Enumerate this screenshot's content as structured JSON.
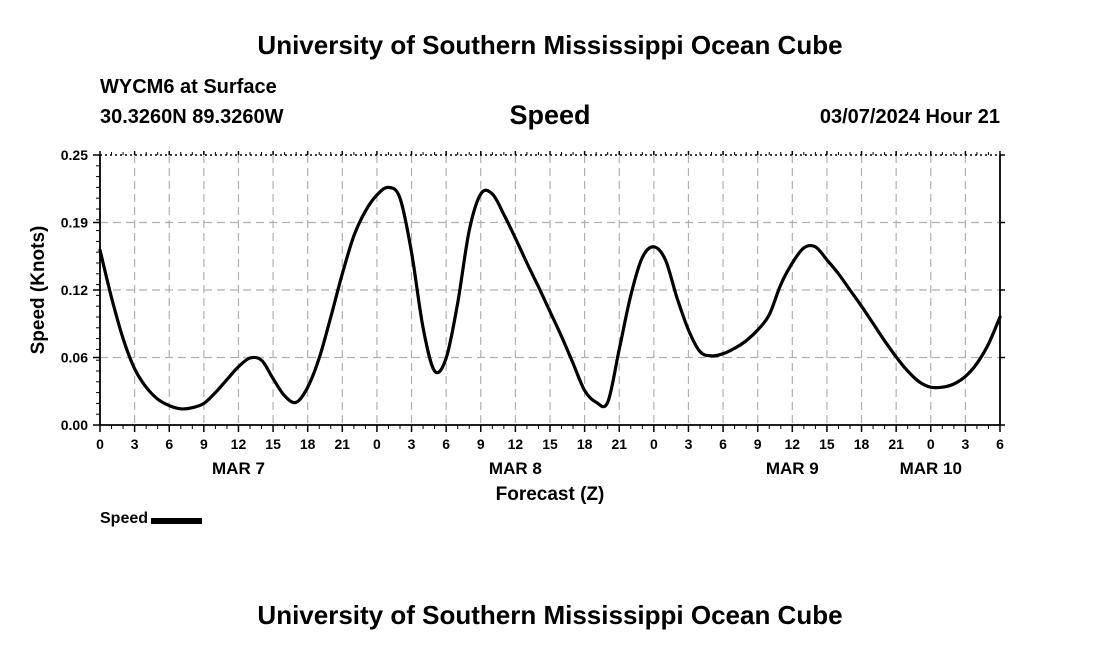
{
  "header": {
    "title": "University of Southern Mississippi Ocean Cube",
    "station": "WYCM6 at Surface",
    "coordinates": "30.3260N  89.3260W",
    "chart_name": "Speed",
    "datetime": "03/07/2024 Hour 21"
  },
  "footer": {
    "title": "University of Southern Mississippi Ocean Cube"
  },
  "legend": {
    "label": "Speed",
    "color": "#000000"
  },
  "chart_data": {
    "type": "line",
    "title": "Speed",
    "xlabel": "Forecast (Z)",
    "ylabel": "Speed (Knots)",
    "ylim": [
      0,
      0.25
    ],
    "xlim": [
      0,
      78
    ],
    "grid": true,
    "legend_position": "bottom-left",
    "y_ticks": [
      "0.00",
      "0.06",
      "0.12",
      "0.19",
      "0.25"
    ],
    "x_tick_labels": [
      "0",
      "3",
      "6",
      "9",
      "12",
      "15",
      "18",
      "21",
      "0",
      "3",
      "6",
      "9",
      "12",
      "15",
      "18",
      "21",
      "0",
      "3",
      "6",
      "9",
      "12",
      "15",
      "18",
      "21",
      "0",
      "3",
      "6"
    ],
    "date_labels": [
      {
        "label": "MAR 7",
        "hour": 12
      },
      {
        "label": "MAR 8",
        "hour": 36
      },
      {
        "label": "MAR 9",
        "hour": 60
      },
      {
        "label": "MAR 10",
        "hour": 72
      }
    ],
    "series": [
      {
        "name": "Speed",
        "color": "#000000",
        "x": [
          0,
          1,
          2,
          3,
          4,
          5,
          6,
          7,
          8,
          9,
          10,
          11,
          12,
          13,
          14,
          15,
          16,
          17,
          18,
          19,
          20,
          21,
          22,
          23,
          24,
          25,
          26,
          27,
          28,
          29,
          30,
          31,
          32,
          33,
          34,
          35,
          36,
          37,
          38,
          39,
          40,
          41,
          42,
          43,
          44,
          45,
          46,
          47,
          48,
          49,
          50,
          51,
          52,
          53,
          54,
          55,
          56,
          57,
          58,
          59,
          60,
          61,
          62,
          63,
          64,
          65,
          66,
          67,
          68,
          69,
          70,
          71,
          72,
          73,
          74,
          75,
          76,
          77,
          78
        ],
        "y": [
          0.162,
          0.118,
          0.08,
          0.052,
          0.035,
          0.024,
          0.018,
          0.015,
          0.016,
          0.02,
          0.03,
          0.042,
          0.054,
          0.062,
          0.06,
          0.043,
          0.027,
          0.021,
          0.035,
          0.062,
          0.1,
          0.14,
          0.175,
          0.198,
          0.213,
          0.22,
          0.21,
          0.16,
          0.09,
          0.05,
          0.062,
          0.113,
          0.18,
          0.214,
          0.214,
          0.195,
          0.173,
          0.15,
          0.128,
          0.105,
          0.082,
          0.057,
          0.032,
          0.021,
          0.021,
          0.07,
          0.12,
          0.155,
          0.165,
          0.153,
          0.118,
          0.088,
          0.068,
          0.064,
          0.066,
          0.071,
          0.078,
          0.088,
          0.102,
          0.13,
          0.15,
          0.164,
          0.165,
          0.153,
          0.14,
          0.125,
          0.11,
          0.094,
          0.078,
          0.063,
          0.05,
          0.04,
          0.035,
          0.035,
          0.038,
          0.045,
          0.057,
          0.075,
          0.1
        ]
      }
    ]
  }
}
